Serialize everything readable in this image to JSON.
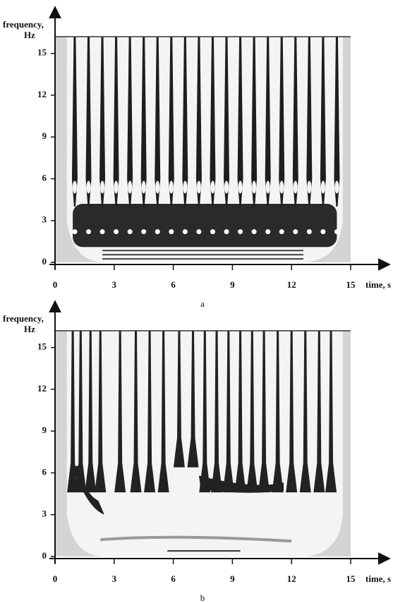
{
  "chart_data": [
    {
      "type": "spectrogram",
      "caption": "a",
      "ylabel_lines": [
        "frequency,",
        "Hz"
      ],
      "xlabel": "time, s",
      "xlim": [
        0,
        15
      ],
      "ylim": [
        0,
        16.2
      ],
      "xticks": [
        0,
        3,
        6,
        9,
        12,
        15
      ],
      "yticks": [
        0,
        3,
        6,
        9,
        12,
        15
      ]
    },
    {
      "type": "spectrogram",
      "caption": "b",
      "ylabel_lines": [
        "frequency,",
        "Hz"
      ],
      "xlabel": "time, s",
      "xlim": [
        0,
        15
      ],
      "ylim": [
        0,
        16.2
      ],
      "xticks": [
        0,
        3,
        6,
        9,
        12,
        15
      ],
      "yticks": [
        0,
        3,
        6,
        9,
        12,
        15
      ]
    }
  ]
}
